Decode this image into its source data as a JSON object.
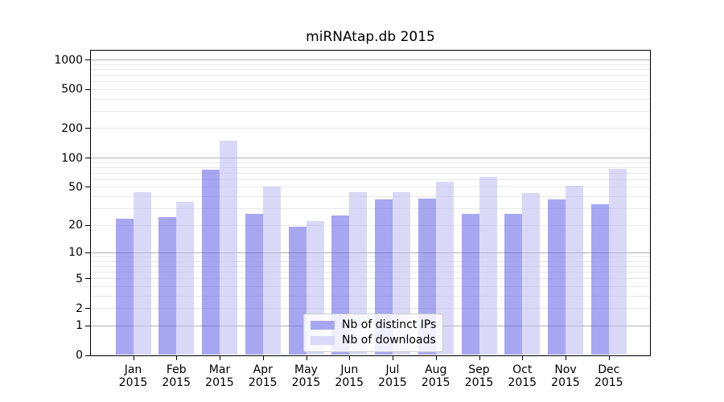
{
  "chart_data": {
    "type": "bar",
    "title": "miRNAtap.db 2015",
    "categories": [
      "Jan",
      "Feb",
      "Mar",
      "Apr",
      "May",
      "Jun",
      "Jul",
      "Aug",
      "Sep",
      "Oct",
      "Nov",
      "Dec"
    ],
    "category_year": "2015",
    "series": [
      {
        "name": "Nb of distinct IPs",
        "color": "#a7a7f1",
        "values": [
          23,
          24,
          75,
          26,
          19,
          25,
          37,
          38,
          26,
          26,
          37,
          33
        ]
      },
      {
        "name": "Nb of downloads",
        "color": "#d9d9f7",
        "values": [
          44,
          35,
          150,
          50,
          22,
          44,
          44,
          57,
          63,
          43,
          51,
          77
        ]
      }
    ],
    "yscale": "log1p",
    "ylim": [
      0,
      1230
    ],
    "yticks": [
      0,
      1,
      2,
      5,
      10,
      20,
      50,
      100,
      200,
      500,
      1000
    ],
    "xlabel": "",
    "ylabel": "",
    "grid": true,
    "legend_position": "lower center",
    "colors": {
      "axis": "#000000",
      "grid_major": "#b2b2b2",
      "grid_minor": "#e9e9e9",
      "background": "#ffffff",
      "bar_alpha": 0.55
    }
  }
}
